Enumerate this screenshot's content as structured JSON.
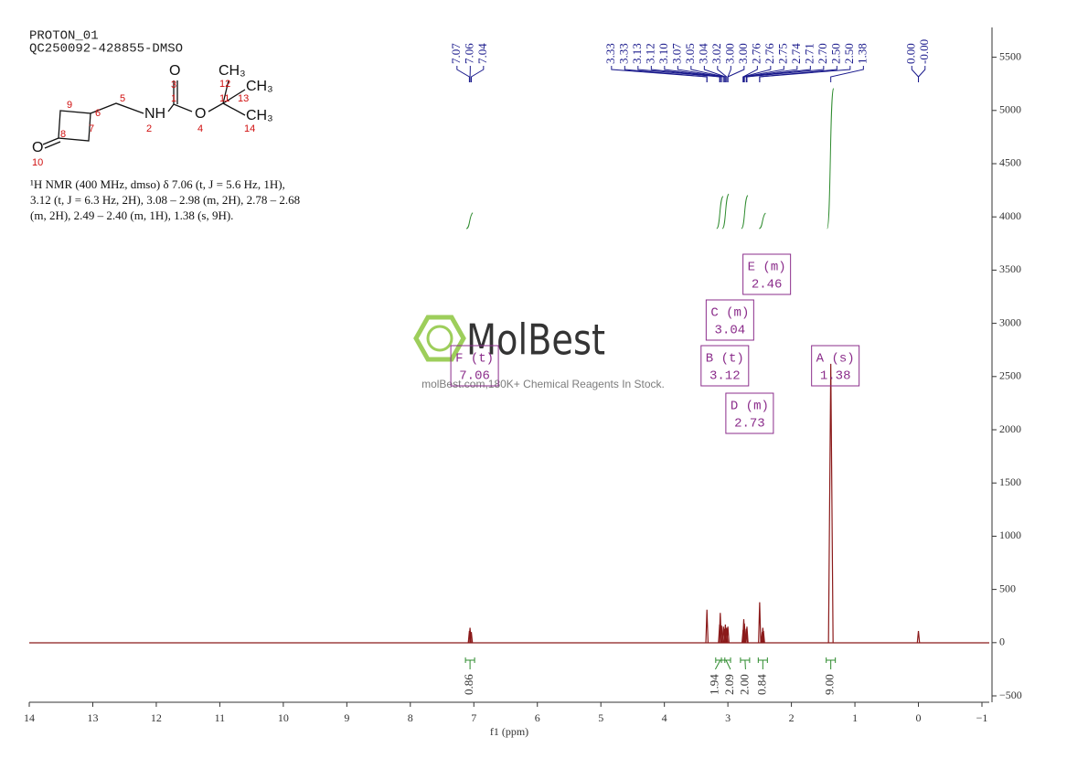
{
  "chart_data": {
    "type": "nmr",
    "title": "PROTON_01",
    "subtitle": "QC250092-428855-DMSO",
    "annotations": [
      "¹H NMR (400 MHz, dmso) δ 7.06 (t, J = 5.6 Hz, 1H),",
      "3.12 (t, J = 6.3 Hz, 2H), 3.08 – 2.98 (m, 2H), 2.78 – 2.68",
      "(m, 2H), 2.49 – 2.40 (m, 1H), 1.38 (s, 9H)."
    ],
    "x_label": "f1 (ppm)",
    "xlim": [
      14,
      -1
    ],
    "xticks": [
      14,
      13,
      12,
      11,
      10,
      9,
      8,
      7,
      6,
      5,
      4,
      3,
      2,
      1,
      0,
      {
        "value": -1,
        "label": "−1"
      }
    ],
    "ylim": [
      -560,
      5780
    ],
    "yticks": [
      {
        "value": -500,
        "label": "−500"
      },
      0,
      500,
      1000,
      1500,
      2000,
      2500,
      3000,
      3500,
      4000,
      4500,
      5000,
      5500
    ],
    "color": "#8b1a1a",
    "peaks": {
      "x": [
        7.07,
        7.06,
        7.04,
        3.33,
        3.13,
        3.12,
        3.1,
        3.07,
        3.05,
        3.04,
        3.02,
        3.0,
        2.76,
        2.75,
        2.74,
        2.71,
        2.7,
        2.5,
        2.46,
        2.45,
        2.44,
        1.38,
        0
      ],
      "values": [
        110,
        140,
        100,
        310,
        170,
        280,
        160,
        150,
        130,
        170,
        140,
        150,
        120,
        220,
        180,
        130,
        150,
        380,
        100,
        140,
        110,
        2620,
        110
      ]
    },
    "peak_labels": {
      "color": "#1a1a8c",
      "values": [
        7.07,
        7.06,
        7.04,
        3.33,
        3.33,
        3.13,
        3.12,
        3.1,
        3.07,
        3.05,
        3.04,
        3.02,
        3.0,
        3.0,
        2.76,
        2.76,
        2.75,
        2.74,
        2.71,
        2.7,
        2.5,
        2.5,
        1.38,
        0,
        0
      ],
      "value_labels": [
        "7.07",
        "7.06",
        "7.04",
        "3.33",
        "3.33",
        "3.13",
        "3.12",
        "3.10",
        "3.07",
        "3.05",
        "3.04",
        "3.02",
        "3.00",
        "3.00",
        "2.76",
        "2.76",
        "2.75",
        "2.74",
        "2.71",
        "2.70",
        "2.50",
        "2.50",
        "1.38",
        "0.00",
        "-0.00"
      ]
    },
    "multiplets": [
      {
        "name": "F (t)",
        "shift": 7.06
      },
      {
        "name": "B (t)",
        "shift": 3.12
      },
      {
        "name": "C (m)",
        "shift": 3.04
      },
      {
        "name": "D (m)",
        "shift": 2.73
      },
      {
        "name": "E (m)",
        "shift": 2.46
      },
      {
        "name": "A (s)",
        "shift": 1.38
      }
    ],
    "integrals": {
      "color": "#2e8b2e",
      "x": [
        7.06,
        3.12,
        3.03,
        2.73,
        2.45,
        1.38
      ],
      "values": [
        0.86,
        1.94,
        2.09,
        2,
        0.84,
        9
      ],
      "value_labels": [
        "0.86",
        "1.94",
        "2.09",
        "2.00",
        "0.84",
        "9.00"
      ]
    }
  },
  "structure": {
    "atoms": [
      "O",
      "NH",
      "O",
      "CH₃",
      "CH₃",
      "CH₃",
      "O"
    ],
    "numbers": [
      1,
      2,
      3,
      4,
      5,
      6,
      7,
      8,
      9,
      10,
      11,
      12,
      13,
      14
    ]
  },
  "watermark": {
    "logo": "MolBest",
    "tagline": "molBest.com,180K+ Chemical Reagents In Stock."
  }
}
